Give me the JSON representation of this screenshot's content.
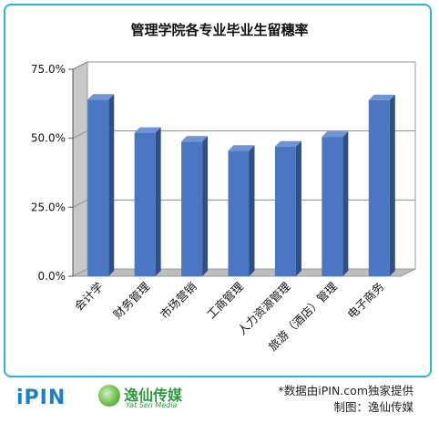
{
  "chart_data": {
    "type": "bar",
    "title": "管理学院各专业毕业生留穗率",
    "xlabel": "",
    "ylabel": "",
    "categories": [
      "会计学",
      "财务管理",
      "市场营销",
      "工商管理",
      "人力资源管理",
      "旅游（酒店）管理",
      "电子商务"
    ],
    "values": [
      64.0,
      52.0,
      48.8,
      45.5,
      47.0,
      50.5,
      63.8
    ],
    "ylim": [
      0,
      75
    ],
    "yticks": [
      0,
      25,
      50,
      75
    ],
    "ytick_labels": [
      "0.0%",
      "25.0%",
      "50.0%",
      "75.0%"
    ],
    "grid": true,
    "bar_color": "#4a76c2",
    "bar_side_color": "#2e4f8a",
    "bar_top_color": "#6f93d3"
  },
  "footer": {
    "logo_ipin": "iPIN",
    "logo_ysm_cn": "逸仙传媒",
    "logo_ysm_en": "Yat Sen Media",
    "source": "*数据由iPIN.com独家提供",
    "made_by": "制图：逸仙传媒"
  }
}
